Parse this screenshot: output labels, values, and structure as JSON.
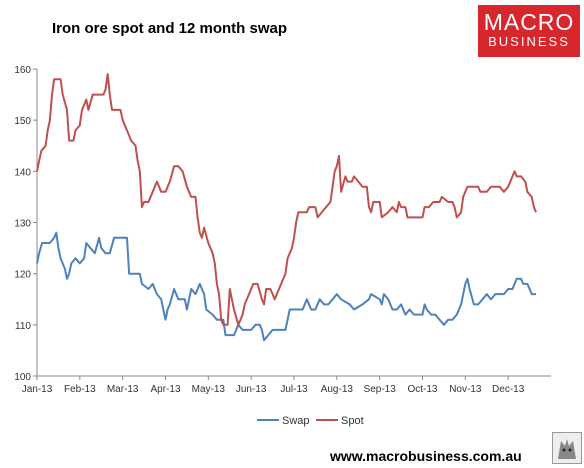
{
  "header": {
    "title": "Iron ore spot and 12 month swap",
    "logo_line1": "MACRO",
    "logo_line2": "BUSINESS"
  },
  "footer": {
    "url": "www.macrobusiness.com.au"
  },
  "colors": {
    "swap": "#4f81bd",
    "spot": "#c0504d",
    "axis": "#888888"
  },
  "chart_data": {
    "type": "line",
    "title": "Iron ore spot and 12 month swap",
    "ylim": [
      100,
      160
    ],
    "yticks": [
      100,
      110,
      120,
      130,
      140,
      150,
      160
    ],
    "xlim": [
      0,
      12
    ],
    "xticks": [
      {
        "label": "Jan-13",
        "x": 0
      },
      {
        "label": "Feb-13",
        "x": 1
      },
      {
        "label": "Mar-13",
        "x": 2
      },
      {
        "label": "Apr-13",
        "x": 3
      },
      {
        "label": "May-13",
        "x": 4
      },
      {
        "label": "Jun-13",
        "x": 5
      },
      {
        "label": "Jul-13",
        "x": 6
      },
      {
        "label": "Aug-13",
        "x": 7
      },
      {
        "label": "Sep-13",
        "x": 8
      },
      {
        "label": "Oct-13",
        "x": 9
      },
      {
        "label": "Nov-13",
        "x": 10
      },
      {
        "label": "Dec-13",
        "x": 11
      }
    ],
    "legend": "bottom",
    "grid": false,
    "series": [
      {
        "name": "Swap",
        "color": "#4f81bd",
        "points": [
          [
            0,
            122
          ],
          [
            0.05,
            124
          ],
          [
            0.12,
            126
          ],
          [
            0.3,
            126
          ],
          [
            0.4,
            127
          ],
          [
            0.45,
            128
          ],
          [
            0.5,
            125
          ],
          [
            0.55,
            123
          ],
          [
            0.6,
            122
          ],
          [
            0.65,
            121
          ],
          [
            0.7,
            119
          ],
          [
            0.75,
            120
          ],
          [
            0.8,
            122
          ],
          [
            0.9,
            123
          ],
          [
            1.0,
            122
          ],
          [
            1.1,
            123
          ],
          [
            1.15,
            126
          ],
          [
            1.25,
            125
          ],
          [
            1.35,
            124
          ],
          [
            1.45,
            127
          ],
          [
            1.5,
            125
          ],
          [
            1.6,
            124
          ],
          [
            1.7,
            124
          ],
          [
            1.8,
            127
          ],
          [
            2.1,
            127
          ],
          [
            2.15,
            120
          ],
          [
            2.4,
            120
          ],
          [
            2.45,
            118
          ],
          [
            2.6,
            117
          ],
          [
            2.7,
            118
          ],
          [
            2.8,
            116
          ],
          [
            2.9,
            115
          ],
          [
            3.0,
            111
          ],
          [
            3.05,
            113
          ],
          [
            3.1,
            114
          ],
          [
            3.2,
            117
          ],
          [
            3.3,
            115
          ],
          [
            3.45,
            115
          ],
          [
            3.5,
            113
          ],
          [
            3.6,
            117
          ],
          [
            3.7,
            116
          ],
          [
            3.8,
            118
          ],
          [
            3.9,
            116
          ],
          [
            3.95,
            113
          ],
          [
            4.1,
            112
          ],
          [
            4.2,
            111
          ],
          [
            4.35,
            111
          ],
          [
            4.4,
            108
          ],
          [
            4.6,
            108
          ],
          [
            4.7,
            110
          ],
          [
            4.8,
            109
          ],
          [
            5.0,
            109
          ],
          [
            5.1,
            110
          ],
          [
            5.2,
            110
          ],
          [
            5.25,
            109
          ],
          [
            5.3,
            107
          ],
          [
            5.4,
            108
          ],
          [
            5.5,
            109
          ],
          [
            5.6,
            109
          ],
          [
            5.8,
            109
          ],
          [
            5.85,
            111
          ],
          [
            5.9,
            113
          ],
          [
            6.2,
            113
          ],
          [
            6.3,
            115
          ],
          [
            6.4,
            113
          ],
          [
            6.5,
            113
          ],
          [
            6.6,
            115
          ],
          [
            6.7,
            114
          ],
          [
            6.8,
            114
          ],
          [
            6.9,
            115
          ],
          [
            7.0,
            116
          ],
          [
            7.1,
            115
          ],
          [
            7.3,
            114
          ],
          [
            7.4,
            113
          ],
          [
            7.6,
            114
          ],
          [
            7.75,
            115
          ],
          [
            7.8,
            116
          ],
          [
            8.0,
            115
          ],
          [
            8.05,
            114
          ],
          [
            8.1,
            116
          ],
          [
            8.2,
            115
          ],
          [
            8.3,
            113
          ],
          [
            8.4,
            113
          ],
          [
            8.5,
            114
          ],
          [
            8.6,
            112
          ],
          [
            8.7,
            113
          ],
          [
            8.8,
            112
          ],
          [
            8.9,
            112
          ],
          [
            9.0,
            112
          ],
          [
            9.05,
            114
          ],
          [
            9.1,
            113
          ],
          [
            9.2,
            112
          ],
          [
            9.3,
            112
          ],
          [
            9.4,
            111
          ],
          [
            9.5,
            110
          ],
          [
            9.6,
            111
          ],
          [
            9.7,
            111
          ],
          [
            9.8,
            112
          ],
          [
            9.9,
            114
          ],
          [
            10.0,
            118
          ],
          [
            10.05,
            119
          ],
          [
            10.1,
            117
          ],
          [
            10.2,
            114
          ],
          [
            10.3,
            114
          ],
          [
            10.4,
            115
          ],
          [
            10.5,
            116
          ],
          [
            10.6,
            115
          ],
          [
            10.7,
            116
          ],
          [
            10.8,
            116
          ],
          [
            10.9,
            116
          ],
          [
            11.0,
            117
          ],
          [
            11.1,
            117
          ],
          [
            11.2,
            119
          ],
          [
            11.3,
            119
          ],
          [
            11.35,
            118
          ],
          [
            11.45,
            118
          ],
          [
            11.5,
            117
          ],
          [
            11.55,
            116
          ],
          [
            11.65,
            116
          ]
        ]
      },
      {
        "name": "Spot",
        "color": "#c0504d",
        "points": [
          [
            0,
            140
          ],
          [
            0.05,
            142
          ],
          [
            0.1,
            144
          ],
          [
            0.2,
            145
          ],
          [
            0.25,
            148
          ],
          [
            0.3,
            150
          ],
          [
            0.35,
            155
          ],
          [
            0.4,
            158
          ],
          [
            0.55,
            158
          ],
          [
            0.6,
            155
          ],
          [
            0.7,
            152
          ],
          [
            0.75,
            146
          ],
          [
            0.85,
            146
          ],
          [
            0.9,
            148
          ],
          [
            1.0,
            149
          ],
          [
            1.05,
            152
          ],
          [
            1.15,
            154
          ],
          [
            1.2,
            152
          ],
          [
            1.3,
            155
          ],
          [
            1.55,
            155
          ],
          [
            1.6,
            156
          ],
          [
            1.65,
            159
          ],
          [
            1.7,
            155
          ],
          [
            1.75,
            152
          ],
          [
            1.95,
            152
          ],
          [
            2.0,
            150
          ],
          [
            2.1,
            148
          ],
          [
            2.2,
            146
          ],
          [
            2.3,
            145
          ],
          [
            2.35,
            142
          ],
          [
            2.4,
            140
          ],
          [
            2.45,
            133
          ],
          [
            2.5,
            134
          ],
          [
            2.6,
            134
          ],
          [
            2.7,
            136
          ],
          [
            2.8,
            138
          ],
          [
            2.9,
            136
          ],
          [
            3.0,
            136
          ],
          [
            3.1,
            138
          ],
          [
            3.2,
            141
          ],
          [
            3.3,
            141
          ],
          [
            3.4,
            140
          ],
          [
            3.5,
            137
          ],
          [
            3.6,
            135
          ],
          [
            3.7,
            135
          ],
          [
            3.75,
            131
          ],
          [
            3.8,
            128
          ],
          [
            3.85,
            127
          ],
          [
            3.9,
            129
          ],
          [
            4.0,
            126
          ],
          [
            4.1,
            124
          ],
          [
            4.15,
            122
          ],
          [
            4.2,
            118
          ],
          [
            4.25,
            116
          ],
          [
            4.3,
            111
          ],
          [
            4.35,
            110
          ],
          [
            4.45,
            110
          ],
          [
            4.5,
            117
          ],
          [
            4.55,
            115
          ],
          [
            4.6,
            113
          ],
          [
            4.7,
            110
          ],
          [
            4.75,
            111
          ],
          [
            4.8,
            112
          ],
          [
            4.85,
            114
          ],
          [
            4.95,
            116
          ],
          [
            5.05,
            118
          ],
          [
            5.15,
            118
          ],
          [
            5.25,
            115
          ],
          [
            5.3,
            114
          ],
          [
            5.35,
            117
          ],
          [
            5.45,
            117
          ],
          [
            5.5,
            116
          ],
          [
            5.55,
            115
          ],
          [
            5.65,
            117
          ],
          [
            5.8,
            120
          ],
          [
            5.85,
            123
          ],
          [
            5.95,
            125
          ],
          [
            6.0,
            127
          ],
          [
            6.05,
            130
          ],
          [
            6.1,
            132
          ],
          [
            6.3,
            132
          ],
          [
            6.35,
            133
          ],
          [
            6.5,
            133
          ],
          [
            6.55,
            131
          ],
          [
            6.65,
            132
          ],
          [
            6.75,
            133
          ],
          [
            6.85,
            134
          ],
          [
            6.9,
            137
          ],
          [
            6.95,
            140
          ],
          [
            7.0,
            141
          ],
          [
            7.05,
            143
          ],
          [
            7.1,
            136
          ],
          [
            7.2,
            139
          ],
          [
            7.25,
            138
          ],
          [
            7.35,
            138
          ],
          [
            7.4,
            139
          ],
          [
            7.5,
            138
          ],
          [
            7.6,
            137
          ],
          [
            7.7,
            137
          ],
          [
            7.75,
            133
          ],
          [
            7.8,
            132
          ],
          [
            7.85,
            134
          ],
          [
            8.0,
            134
          ],
          [
            8.05,
            131
          ],
          [
            8.2,
            132
          ],
          [
            8.3,
            133
          ],
          [
            8.4,
            132
          ],
          [
            8.45,
            134
          ],
          [
            8.5,
            133
          ],
          [
            8.6,
            133
          ],
          [
            8.65,
            131
          ],
          [
            9.0,
            131
          ],
          [
            9.05,
            133
          ],
          [
            9.15,
            133
          ],
          [
            9.25,
            134
          ],
          [
            9.4,
            134
          ],
          [
            9.45,
            135
          ],
          [
            9.6,
            134
          ],
          [
            9.7,
            134
          ],
          [
            9.75,
            133
          ],
          [
            9.8,
            131
          ],
          [
            9.9,
            132
          ],
          [
            9.95,
            135
          ],
          [
            10.0,
            136
          ],
          [
            10.05,
            137
          ],
          [
            10.3,
            137
          ],
          [
            10.35,
            136
          ],
          [
            10.5,
            136
          ],
          [
            10.6,
            137
          ],
          [
            10.8,
            137
          ],
          [
            10.9,
            136
          ],
          [
            11.0,
            137
          ],
          [
            11.1,
            139
          ],
          [
            11.15,
            140
          ],
          [
            11.2,
            139
          ],
          [
            11.3,
            139
          ],
          [
            11.4,
            138
          ],
          [
            11.45,
            136
          ],
          [
            11.55,
            135
          ],
          [
            11.6,
            133
          ],
          [
            11.65,
            132
          ]
        ]
      }
    ]
  }
}
